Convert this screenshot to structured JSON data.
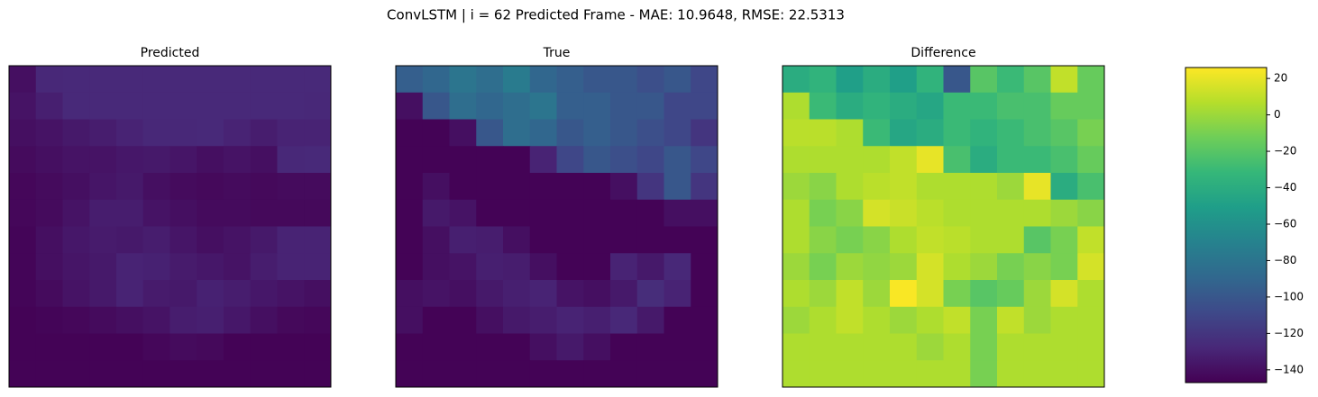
{
  "chart_data": {
    "type": "heatmap",
    "title": "ConvLSTM | i = 62 Predicted Frame - MAE: 10.9648, RMSE: 22.5313",
    "colormap": "viridis",
    "zlim": [
      -147,
      26
    ],
    "zticks": [
      20,
      0,
      {
        "value": -20,
        "label": "−20"
      },
      {
        "value": -40,
        "label": "−40"
      },
      {
        "value": -60,
        "label": "−60"
      },
      {
        "value": -80,
        "label": "−80"
      },
      {
        "value": -100,
        "label": "−100"
      },
      {
        "value": -120,
        "label": "−120"
      },
      {
        "value": -140,
        "label": "−140"
      }
    ],
    "panels": [
      {
        "title": "Predicted",
        "values": [
          [
            -140,
            -128,
            -127,
            -127,
            -127,
            -127,
            -127,
            -127,
            -127,
            -127,
            -127,
            -127
          ],
          [
            -138,
            -132,
            -127,
            -127,
            -127,
            -127,
            -127,
            -127,
            -127,
            -127,
            -127,
            -128
          ],
          [
            -140,
            -138,
            -135,
            -133,
            -130,
            -128,
            -128,
            -127,
            -130,
            -133,
            -130,
            -130
          ],
          [
            -142,
            -140,
            -138,
            -138,
            -136,
            -135,
            -137,
            -140,
            -138,
            -140,
            -128,
            -127
          ],
          [
            -144,
            -142,
            -140,
            -137,
            -135,
            -140,
            -142,
            -143,
            -142,
            -143,
            -142,
            -142
          ],
          [
            -144,
            -142,
            -138,
            -133,
            -133,
            -138,
            -140,
            -142,
            -142,
            -143,
            -143,
            -143
          ],
          [
            -145,
            -140,
            -136,
            -134,
            -135,
            -133,
            -137,
            -140,
            -138,
            -135,
            -130,
            -130
          ],
          [
            -145,
            -140,
            -137,
            -135,
            -130,
            -131,
            -134,
            -136,
            -138,
            -133,
            -130,
            -130
          ],
          [
            -145,
            -142,
            -138,
            -135,
            -130,
            -134,
            -135,
            -131,
            -133,
            -136,
            -138,
            -140
          ],
          [
            -146,
            -145,
            -144,
            -142,
            -140,
            -138,
            -133,
            -132,
            -136,
            -140,
            -143,
            -144
          ],
          [
            -146,
            -146,
            -146,
            -146,
            -146,
            -144,
            -142,
            -143,
            -146,
            -146,
            -146,
            -146
          ],
          [
            -146,
            -146,
            -146,
            -146,
            -146,
            -146,
            -146,
            -146,
            -146,
            -146,
            -146,
            -146
          ]
        ]
      },
      {
        "title": "True",
        "values": [
          [
            -95,
            -90,
            -80,
            -85,
            -75,
            -90,
            -95,
            -100,
            -100,
            -105,
            -100,
            -110
          ],
          [
            -140,
            -100,
            -85,
            -90,
            -85,
            -80,
            -95,
            -95,
            -100,
            -100,
            -110,
            -110
          ],
          [
            -146,
            -146,
            -140,
            -100,
            -85,
            -90,
            -100,
            -95,
            -100,
            -105,
            -110,
            -120
          ],
          [
            -146,
            -146,
            -146,
            -146,
            -146,
            -130,
            -110,
            -100,
            -105,
            -110,
            -100,
            -110
          ],
          [
            -146,
            -140,
            -146,
            -146,
            -146,
            -146,
            -146,
            -146,
            -140,
            -120,
            -100,
            -120
          ],
          [
            -146,
            -135,
            -138,
            -146,
            -146,
            -146,
            -146,
            -146,
            -146,
            -146,
            -140,
            -140
          ],
          [
            -146,
            -140,
            -132,
            -133,
            -140,
            -146,
            -146,
            -146,
            -146,
            -146,
            -146,
            -146
          ],
          [
            -146,
            -140,
            -138,
            -132,
            -133,
            -140,
            -146,
            -146,
            -130,
            -135,
            -128,
            -146
          ],
          [
            -140,
            -138,
            -140,
            -135,
            -132,
            -130,
            -138,
            -140,
            -135,
            -125,
            -130,
            -146
          ],
          [
            -140,
            -146,
            -146,
            -140,
            -135,
            -133,
            -130,
            -132,
            -128,
            -135,
            -146,
            -146
          ],
          [
            -146,
            -146,
            -146,
            -146,
            -146,
            -140,
            -135,
            -140,
            -146,
            -146,
            -146,
            -146
          ],
          [
            -146,
            -146,
            -146,
            -146,
            -146,
            -146,
            -146,
            -146,
            -146,
            -146,
            -146,
            -146
          ]
        ]
      },
      {
        "title": "Difference",
        "values": [
          [
            -40,
            -35,
            -50,
            -40,
            -50,
            -35,
            -100,
            -20,
            -30,
            -20,
            10,
            -15
          ],
          [
            5,
            -30,
            -40,
            -35,
            -40,
            -45,
            -30,
            -30,
            -25,
            -25,
            -15,
            -15
          ],
          [
            8,
            8,
            5,
            -30,
            -45,
            -40,
            -30,
            -35,
            -30,
            -25,
            -20,
            -10
          ],
          [
            5,
            5,
            5,
            5,
            10,
            20,
            -25,
            -40,
            -30,
            -30,
            -25,
            -15
          ],
          [
            0,
            -5,
            5,
            8,
            10,
            5,
            5,
            5,
            0,
            20,
            -40,
            -25
          ],
          [
            5,
            -10,
            -5,
            15,
            12,
            8,
            5,
            5,
            5,
            5,
            0,
            -5
          ],
          [
            5,
            -5,
            -10,
            -5,
            5,
            10,
            8,
            5,
            5,
            -20,
            -10,
            10
          ],
          [
            0,
            -10,
            0,
            -3,
            0,
            15,
            5,
            0,
            -10,
            -5,
            -10,
            15
          ],
          [
            5,
            0,
            10,
            0,
            25,
            15,
            -10,
            -20,
            -15,
            0,
            15,
            5
          ],
          [
            0,
            5,
            10,
            5,
            0,
            5,
            10,
            -10,
            10,
            0,
            5,
            5
          ],
          [
            5,
            5,
            5,
            5,
            5,
            0,
            5,
            -10,
            5,
            5,
            5,
            5
          ],
          [
            5,
            5,
            5,
            5,
            5,
            5,
            5,
            -10,
            5,
            5,
            5,
            5
          ]
        ]
      }
    ]
  }
}
